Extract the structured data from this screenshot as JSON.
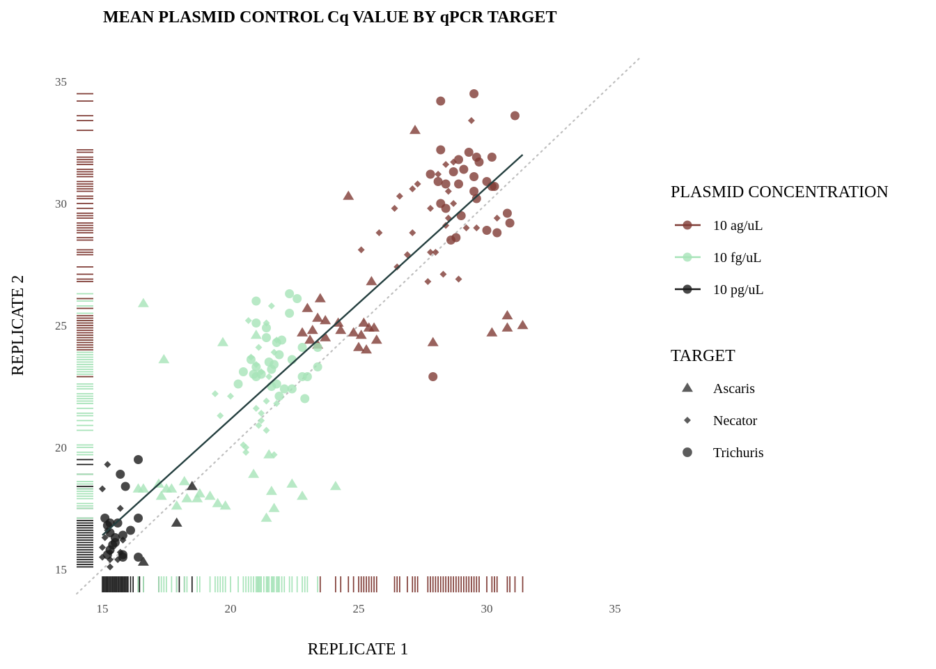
{
  "chart_data": {
    "type": "scatter",
    "title": "MEAN PLASMID CONTROL Cq VALUE BY qPCR TARGET",
    "xlabel": "REPLICATE 1",
    "ylabel": "REPLICATE 2",
    "xlim": [
      14,
      36
    ],
    "ylim": [
      14,
      36
    ],
    "x_ticks": [
      "15",
      "20",
      "25",
      "30",
      "35"
    ],
    "y_ticks": [
      "15",
      "20",
      "25",
      "30",
      "35"
    ],
    "grid": false,
    "identity_line": true,
    "fit_line": {
      "x": [
        15,
        31.4
      ],
      "y": [
        16.4,
        32
      ]
    },
    "legend_position": "right",
    "legends": [
      {
        "title": "PLASMID CONCENTRATION",
        "entries": [
          {
            "label": "10 ag/uL",
            "key": "ag",
            "color": "#7f3b35"
          },
          {
            "label": "10 fg/uL",
            "key": "fg",
            "color": "#a6e3b8"
          },
          {
            "label": "10 pg/uL",
            "key": "pg",
            "color": "#1a1a1a"
          }
        ]
      },
      {
        "title": "TARGET",
        "entries": [
          {
            "label": "Ascaris",
            "shape": "triangle"
          },
          {
            "label": "Necator",
            "shape": "diamond"
          },
          {
            "label": "Trichuris",
            "shape": "circle"
          }
        ]
      }
    ],
    "series": [
      {
        "concentration": "10 ag/uL",
        "target": "Trichuris",
        "color": "#7f3b35",
        "shape": "circle",
        "points": [
          [
            28.2,
            34.2
          ],
          [
            29.5,
            34.5
          ],
          [
            31.1,
            33.6
          ],
          [
            28.2,
            32.2
          ],
          [
            29.3,
            32.1
          ],
          [
            28.9,
            31.8
          ],
          [
            29.6,
            31.9
          ],
          [
            30.2,
            31.9
          ],
          [
            29.7,
            31.7
          ],
          [
            27.8,
            31.2
          ],
          [
            28.7,
            31.3
          ],
          [
            29.1,
            31.4
          ],
          [
            29.5,
            31.1
          ],
          [
            28.1,
            30.9
          ],
          [
            28.4,
            30.8
          ],
          [
            28.9,
            30.8
          ],
          [
            30.0,
            30.9
          ],
          [
            30.2,
            30.7
          ],
          [
            30.3,
            30.7
          ],
          [
            29.5,
            30.5
          ],
          [
            28.2,
            30.0
          ],
          [
            29.6,
            30.2
          ],
          [
            28.4,
            29.8
          ],
          [
            29.0,
            29.5
          ],
          [
            30.8,
            29.6
          ],
          [
            28.8,
            28.6
          ],
          [
            28.6,
            28.5
          ],
          [
            30.0,
            28.9
          ],
          [
            30.4,
            28.8
          ],
          [
            30.9,
            29.2
          ],
          [
            27.9,
            22.9
          ]
        ]
      },
      {
        "concentration": "10 ag/uL",
        "target": "Necator",
        "color": "#7f3b35",
        "shape": "diamond",
        "points": [
          [
            29.4,
            33.4
          ],
          [
            28.7,
            31.7
          ],
          [
            28.4,
            31.6
          ],
          [
            28.1,
            31.2
          ],
          [
            27.3,
            30.8
          ],
          [
            26.6,
            30.3
          ],
          [
            27.1,
            30.6
          ],
          [
            28.7,
            30.0
          ],
          [
            28.5,
            30.5
          ],
          [
            27.8,
            29.8
          ],
          [
            28.5,
            29.4
          ],
          [
            29.6,
            29.0
          ],
          [
            27.1,
            28.8
          ],
          [
            25.8,
            28.8
          ],
          [
            28.4,
            29.1
          ],
          [
            28.0,
            28.0
          ],
          [
            27.8,
            28.0
          ],
          [
            25.1,
            28.1
          ],
          [
            26.5,
            27.4
          ],
          [
            28.3,
            27.1
          ],
          [
            27.7,
            26.8
          ],
          [
            28.9,
            26.9
          ],
          [
            26.9,
            27.9
          ],
          [
            26.4,
            29.8
          ],
          [
            30.4,
            29.4
          ],
          [
            29.2,
            29.0
          ]
        ]
      },
      {
        "concentration": "10 ag/uL",
        "target": "Ascaris",
        "color": "#7f3b35",
        "shape": "triangle",
        "points": [
          [
            27.2,
            33.0
          ],
          [
            24.6,
            30.3
          ],
          [
            25.5,
            26.8
          ],
          [
            23.5,
            26.1
          ],
          [
            23.0,
            25.7
          ],
          [
            23.4,
            25.3
          ],
          [
            23.7,
            25.2
          ],
          [
            24.2,
            25.1
          ],
          [
            25.2,
            25.1
          ],
          [
            25.6,
            24.9
          ],
          [
            25.4,
            24.9
          ],
          [
            24.3,
            24.8
          ],
          [
            22.8,
            24.7
          ],
          [
            23.2,
            24.8
          ],
          [
            24.8,
            24.7
          ],
          [
            25.1,
            24.6
          ],
          [
            23.7,
            24.5
          ],
          [
            23.1,
            24.4
          ],
          [
            25.7,
            24.4
          ],
          [
            23.4,
            24.2
          ],
          [
            25.0,
            24.1
          ],
          [
            25.3,
            24.0
          ],
          [
            27.9,
            24.3
          ],
          [
            30.8,
            25.4
          ],
          [
            30.8,
            24.9
          ],
          [
            31.4,
            25.0
          ],
          [
            30.2,
            24.7
          ]
        ]
      },
      {
        "concentration": "10 fg/uL",
        "target": "Trichuris",
        "color": "#a6e3b8",
        "shape": "circle",
        "points": [
          [
            22.3,
            26.3
          ],
          [
            22.6,
            26.1
          ],
          [
            21.0,
            26.0
          ],
          [
            22.3,
            25.5
          ],
          [
            21.0,
            25.1
          ],
          [
            21.4,
            24.9
          ],
          [
            21.4,
            24.5
          ],
          [
            22.0,
            24.4
          ],
          [
            21.8,
            24.3
          ],
          [
            22.8,
            24.1
          ],
          [
            23.4,
            24.1
          ],
          [
            20.8,
            23.6
          ],
          [
            21.5,
            23.5
          ],
          [
            22.4,
            23.6
          ],
          [
            21.9,
            23.8
          ],
          [
            21.7,
            23.4
          ],
          [
            21.0,
            23.3
          ],
          [
            21.6,
            23.2
          ],
          [
            20.5,
            23.1
          ],
          [
            21.2,
            23.0
          ],
          [
            21.0,
            22.9
          ],
          [
            22.8,
            22.9
          ],
          [
            23.0,
            22.9
          ],
          [
            21.8,
            22.6
          ],
          [
            21.6,
            22.5
          ],
          [
            22.1,
            22.4
          ],
          [
            22.4,
            22.4
          ],
          [
            21.9,
            22.1
          ],
          [
            22.9,
            22.0
          ],
          [
            23.4,
            23.3
          ],
          [
            20.3,
            22.6
          ],
          [
            20.9,
            23.0
          ]
        ]
      },
      {
        "concentration": "10 fg/uL",
        "target": "Necator",
        "color": "#a6e3b8",
        "shape": "diamond",
        "points": [
          [
            21.6,
            25.8
          ],
          [
            20.7,
            25.2
          ],
          [
            21.4,
            25.1
          ],
          [
            21.8,
            24.4
          ],
          [
            21.1,
            24.1
          ],
          [
            21.7,
            23.9
          ],
          [
            20.8,
            23.7
          ],
          [
            21.0,
            23.4
          ],
          [
            21.2,
            23.1
          ],
          [
            21.5,
            22.9
          ],
          [
            19.4,
            22.2
          ],
          [
            20.0,
            22.1
          ],
          [
            21.8,
            21.8
          ],
          [
            21.4,
            21.9
          ],
          [
            21.0,
            21.6
          ],
          [
            19.6,
            21.3
          ],
          [
            21.2,
            21.4
          ],
          [
            21.2,
            21.1
          ],
          [
            21.1,
            20.9
          ],
          [
            21.4,
            20.7
          ],
          [
            20.5,
            20.1
          ],
          [
            20.6,
            20.0
          ],
          [
            20.6,
            19.8
          ],
          [
            21.7,
            19.7
          ]
        ]
      },
      {
        "concentration": "10 fg/uL",
        "target": "Ascaris",
        "color": "#a6e3b8",
        "shape": "triangle",
        "points": [
          [
            16.6,
            25.9
          ],
          [
            17.4,
            23.6
          ],
          [
            19.7,
            24.3
          ],
          [
            21.0,
            24.6
          ],
          [
            21.5,
            19.7
          ],
          [
            20.9,
            18.9
          ],
          [
            22.4,
            18.5
          ],
          [
            24.1,
            18.4
          ],
          [
            17.2,
            18.5
          ],
          [
            17.5,
            18.3
          ],
          [
            18.2,
            18.6
          ],
          [
            17.3,
            18.0
          ],
          [
            16.6,
            18.3
          ],
          [
            17.7,
            18.3
          ],
          [
            18.8,
            18.1
          ],
          [
            18.7,
            17.9
          ],
          [
            19.2,
            18.0
          ],
          [
            18.3,
            17.9
          ],
          [
            17.9,
            17.6
          ],
          [
            19.5,
            17.7
          ],
          [
            19.8,
            17.6
          ],
          [
            22.8,
            18.0
          ],
          [
            21.7,
            17.5
          ],
          [
            21.6,
            18.2
          ],
          [
            21.4,
            17.1
          ],
          [
            16.4,
            18.3
          ]
        ]
      },
      {
        "concentration": "10 pg/uL",
        "target": "Trichuris",
        "color": "#1a1a1a",
        "shape": "circle",
        "points": [
          [
            16.4,
            19.5
          ],
          [
            15.7,
            18.9
          ],
          [
            15.9,
            18.4
          ],
          [
            16.4,
            17.1
          ],
          [
            15.1,
            17.1
          ],
          [
            15.3,
            16.9
          ],
          [
            15.2,
            16.8
          ],
          [
            15.6,
            16.9
          ],
          [
            16.1,
            16.6
          ],
          [
            15.3,
            16.5
          ],
          [
            15.8,
            16.4
          ],
          [
            15.5,
            16.3
          ],
          [
            15.5,
            16.1
          ],
          [
            15.4,
            16.0
          ],
          [
            15.3,
            15.8
          ],
          [
            15.2,
            15.6
          ],
          [
            15.8,
            15.6
          ],
          [
            15.8,
            15.5
          ],
          [
            16.4,
            15.5
          ]
        ]
      },
      {
        "concentration": "10 pg/uL",
        "target": "Necator",
        "color": "#1a1a1a",
        "shape": "diamond",
        "points": [
          [
            15.2,
            19.3
          ],
          [
            15.0,
            18.3
          ],
          [
            15.7,
            17.5
          ],
          [
            15.2,
            16.6
          ],
          [
            15.1,
            16.3
          ],
          [
            15.8,
            16.2
          ],
          [
            15.0,
            15.9
          ],
          [
            15.3,
            15.7
          ],
          [
            15.6,
            15.4
          ],
          [
            15.0,
            15.5
          ],
          [
            15.3,
            15.4
          ],
          [
            15.3,
            15.1
          ],
          [
            15.7,
            15.7
          ]
        ]
      },
      {
        "concentration": "10 pg/uL",
        "target": "Ascaris",
        "color": "#1a1a1a",
        "shape": "triangle",
        "points": [
          [
            18.5,
            18.4
          ],
          [
            17.9,
            16.9
          ],
          [
            16.6,
            15.3
          ]
        ]
      }
    ],
    "rug_x": [
      {
        "color": "#1a1a1a",
        "values": [
          15.0,
          15.05,
          15.1,
          15.15,
          15.2,
          15.25,
          15.3,
          15.35,
          15.4,
          15.45,
          15.5,
          15.55,
          15.6,
          15.65,
          15.7,
          15.75,
          15.8,
          15.85,
          15.9,
          15.95,
          16.0,
          16.1,
          16.2,
          16.4,
          16.45,
          16.6,
          17.2,
          17.9,
          18.0,
          18.2,
          18.5
        ]
      },
      {
        "color": "#a6e3b8",
        "values": [
          16.4,
          16.6,
          17.2,
          17.3,
          17.4,
          17.5,
          17.7,
          17.9,
          18.2,
          18.3,
          18.7,
          18.8,
          19.2,
          19.4,
          19.5,
          19.6,
          19.7,
          19.8,
          20.0,
          20.3,
          20.5,
          20.6,
          20.7,
          20.8,
          20.9,
          21.0,
          21.05,
          21.1,
          21.15,
          21.2,
          21.3,
          21.4,
          21.45,
          21.5,
          21.6,
          21.65,
          21.7,
          21.8,
          21.85,
          21.9,
          22.0,
          22.1,
          22.3,
          22.4,
          22.6,
          22.8,
          22.9,
          23.0,
          23.4
        ]
      },
      {
        "color": "#7f3b35",
        "values": [
          23.5,
          24.1,
          24.3,
          24.6,
          24.8,
          25.0,
          25.1,
          25.2,
          25.3,
          25.4,
          25.5,
          25.6,
          25.7,
          26.4,
          26.5,
          26.6,
          26.9,
          27.1,
          27.2,
          27.3,
          27.7,
          27.8,
          27.9,
          28.0,
          28.1,
          28.2,
          28.3,
          28.4,
          28.5,
          28.6,
          28.7,
          28.8,
          28.9,
          29.0,
          29.1,
          29.2,
          29.3,
          29.4,
          29.5,
          29.6,
          29.7,
          30.0,
          30.2,
          30.3,
          30.4,
          30.8,
          30.9,
          31.1,
          31.4
        ]
      }
    ],
    "rug_y": [
      {
        "color": "#1a1a1a",
        "values": [
          15.1,
          15.2,
          15.3,
          15.4,
          15.5,
          15.6,
          15.7,
          15.8,
          15.9,
          16.0,
          16.1,
          16.2,
          16.3,
          16.4,
          16.5,
          16.6,
          16.7,
          16.8,
          16.9,
          17.0,
          17.1,
          17.5,
          18.3,
          18.4,
          18.9,
          19.3,
          19.5
        ]
      },
      {
        "color": "#a6e3b8",
        "values": [
          17.1,
          17.5,
          17.6,
          17.7,
          17.9,
          18.0,
          18.1,
          18.2,
          18.3,
          18.5,
          18.6,
          18.9,
          19.7,
          19.8,
          20.0,
          20.1,
          20.7,
          20.9,
          21.1,
          21.3,
          21.4,
          21.6,
          21.8,
          21.9,
          22.0,
          22.1,
          22.2,
          22.4,
          22.5,
          22.6,
          22.9,
          23.0,
          23.1,
          23.2,
          23.3,
          23.4,
          23.5,
          23.6,
          23.7,
          23.8,
          23.9,
          24.1,
          24.3,
          24.4,
          24.5,
          24.6,
          24.9,
          25.1,
          25.2,
          25.5,
          25.8,
          26.0,
          26.1,
          26.3
        ]
      },
      {
        "color": "#7f3b35",
        "values": [
          22.9,
          24.0,
          24.1,
          24.2,
          24.3,
          24.4,
          24.5,
          24.6,
          24.7,
          24.8,
          24.9,
          25.0,
          25.1,
          25.2,
          25.3,
          25.4,
          25.7,
          26.1,
          26.8,
          26.9,
          27.1,
          27.4,
          27.9,
          28.0,
          28.1,
          28.5,
          28.6,
          28.8,
          28.9,
          29.0,
          29.1,
          29.2,
          29.4,
          29.5,
          29.6,
          29.8,
          30.0,
          30.2,
          30.3,
          30.5,
          30.6,
          30.7,
          30.8,
          30.9,
          31.1,
          31.2,
          31.3,
          31.4,
          31.6,
          31.7,
          31.8,
          31.9,
          32.1,
          32.2,
          33.0,
          33.4,
          33.6,
          34.2,
          34.5
        ]
      }
    ]
  }
}
